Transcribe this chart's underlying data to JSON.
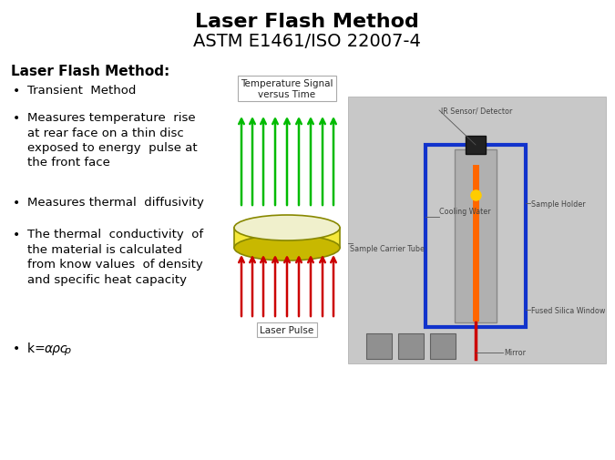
{
  "title_line1": "Laser Flash Method",
  "title_line2": "ASTM E1461/ISO 22007-4",
  "section_title": "Laser Flash Method:",
  "bullet_char": "•",
  "background_color": "#ffffff",
  "title_color": "#000000",
  "text_color": "#000000",
  "green_color": "#00bb00",
  "red_color": "#cc0000",
  "disc_face_color": "#f5e83a",
  "disc_edge_color": "#888800",
  "disc_shadow_color": "#c8b800",
  "diagram_bg_color": "#c8c8c8",
  "blue_rect_color": "#1133cc",
  "label_color": "#444444",
  "temp_signal_text": "Temperature Signal\nversus Time",
  "laser_pulse_text": "Laser Pulse",
  "apparatus_labels": {
    "ir_sensor": "IR Sensor/ Detector",
    "cooling_water": "Cooling Water",
    "sample_holder": "Sample Holder",
    "sample_carrier": "Sample Carrier Tube",
    "fused_silica": "Fused Silica Window",
    "mirror": "Mirror"
  }
}
